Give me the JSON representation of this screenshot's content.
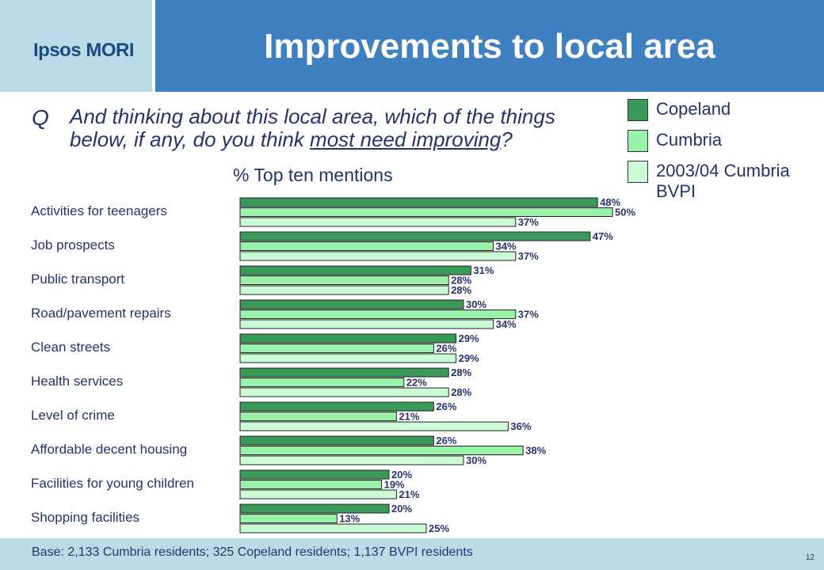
{
  "header": {
    "logo": "Ipsos MORI",
    "title": "Improvements to local area"
  },
  "question": {
    "marker": "Q",
    "text_before": "And thinking about this local area, which of the things below, if any, do you think ",
    "text_underlined": "most need improving",
    "text_after": "?"
  },
  "chart_data": {
    "type": "bar",
    "orientation": "horizontal",
    "subtitle": "% Top ten mentions",
    "categories": [
      "Activities for teenagers",
      "Job prospects",
      "Public transport",
      "Road/pavement repairs",
      "Clean streets",
      "Health services",
      "Level of crime",
      "Affordable decent housing",
      "Facilities for young children",
      "Shopping facilities"
    ],
    "series": [
      {
        "name": "Copeland",
        "color": "#3a9a5a",
        "values": [
          48,
          47,
          31,
          30,
          29,
          28,
          26,
          26,
          20,
          20
        ]
      },
      {
        "name": "Cumbria",
        "color": "#99f2a9",
        "values": [
          50,
          34,
          28,
          37,
          26,
          22,
          21,
          38,
          19,
          13
        ]
      },
      {
        "name": "2003/04 Cumbria BVPI",
        "color": "#ccfcd6",
        "values": [
          37,
          37,
          28,
          34,
          29,
          28,
          36,
          30,
          21,
          25
        ]
      }
    ],
    "value_suffix": "%",
    "xlim": [
      0,
      55
    ],
    "legend_position": "top-right",
    "grid": false
  },
  "footer": {
    "base": "Base: 2,133 Cumbria residents; 325 Copeland residents; 1,137 BVPI residents",
    "page": "12"
  }
}
